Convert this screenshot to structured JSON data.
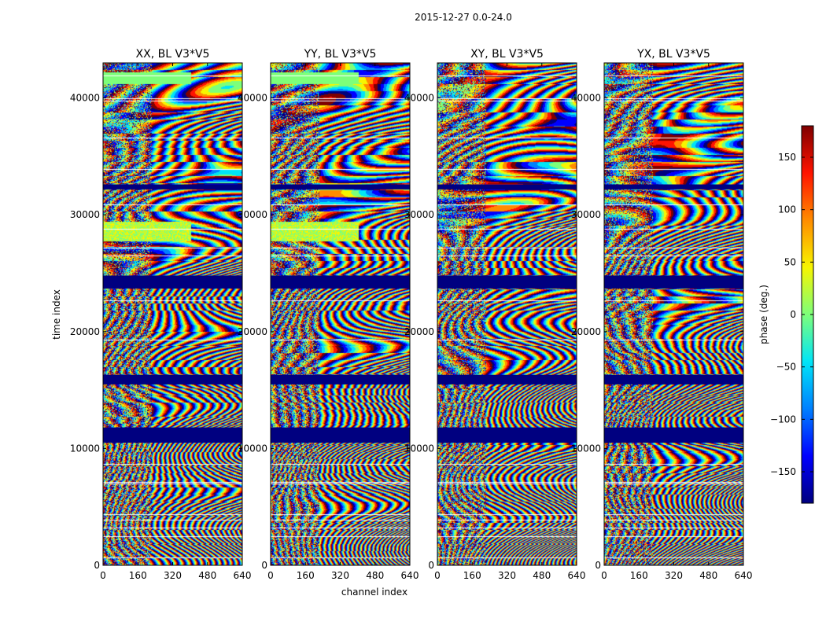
{
  "suptitle": "2015-12-27 0.0-24.0",
  "chart_data": {
    "type": "heatmap",
    "quantity": "phase",
    "panels": [
      {
        "title": "XX, BL V3*V5",
        "feature_band": 1
      },
      {
        "title": "YY, BL V3*V5",
        "feature_band": 1
      },
      {
        "title": "XY, BL V3*V5",
        "feature_band": 0
      },
      {
        "title": "YX, BL V3*V5",
        "feature_band": 0
      }
    ],
    "xlabel": "channel index",
    "ylabel": "time index",
    "xlim": [
      0,
      640
    ],
    "ylim": [
      0,
      43000
    ],
    "xticks": [
      0,
      160,
      320,
      480,
      640
    ],
    "yticks": [
      0,
      10000,
      20000,
      30000,
      40000
    ],
    "xtick_labels": [
      "0",
      "160",
      "320",
      "480",
      "640"
    ],
    "ytick_labels": [
      "0",
      "10000",
      "20000",
      "30000",
      "40000"
    ],
    "flagged_time_ranges": [
      [
        10500,
        11800
      ],
      [
        15500,
        16300
      ],
      [
        23700,
        24800
      ],
      [
        32200,
        32600
      ]
    ],
    "blank_lines": [
      700,
      2500,
      3200,
      3900,
      4400,
      7000,
      7100,
      8700,
      19300,
      22700,
      26500,
      27200,
      28800,
      30900,
      33900,
      36600,
      39800,
      40000,
      41900
    ],
    "colorbar": {
      "label": "phase (deg.)",
      "range": [
        -180,
        180
      ],
      "ticks": [
        -150,
        -100,
        -50,
        0,
        50,
        100,
        150
      ],
      "tick_labels": [
        "−150",
        "−100",
        "−50",
        "0",
        "50",
        "100",
        "150"
      ],
      "colormap": [
        "#00007f",
        "#0000ff",
        "#0080ff",
        "#00e5f7",
        "#7dff7a",
        "#f7f500",
        "#ff8c00",
        "#ff1300",
        "#7f0000"
      ],
      "flag_color": "#000080"
    }
  }
}
